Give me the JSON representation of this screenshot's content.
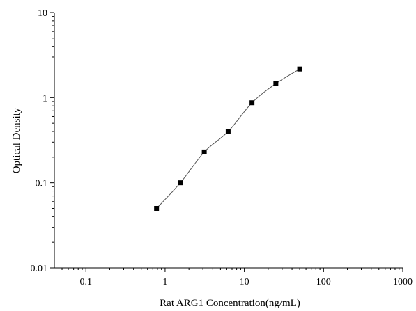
{
  "chart_data": {
    "type": "scatter",
    "title": "",
    "xlabel": "Rat ARG1 Concentration(ng/mL)",
    "ylabel": "Optical Density",
    "x_scale": "log",
    "y_scale": "log",
    "xlim": [
      0.04,
      1000
    ],
    "ylim": [
      0.01,
      10
    ],
    "x_ticks": [
      0.1,
      1,
      10,
      100,
      1000
    ],
    "x_tick_labels": [
      "0.1",
      "1",
      "10",
      "100",
      "1000"
    ],
    "y_ticks": [
      0.01,
      0.1,
      1,
      10
    ],
    "y_tick_labels": [
      "0.01",
      "0.1",
      "1",
      "10"
    ],
    "grid": false,
    "legend": "none",
    "series": [
      {
        "x": [
          0.78,
          1.56,
          3.12,
          6.25,
          12.5,
          25,
          50
        ],
        "y": [
          0.05,
          0.1,
          0.23,
          0.4,
          0.87,
          1.46,
          2.17
        ],
        "marker": "square",
        "line": "smooth"
      }
    ],
    "colors": {
      "marker": "#000000",
      "line": "#555555",
      "axis": "#000000"
    }
  }
}
